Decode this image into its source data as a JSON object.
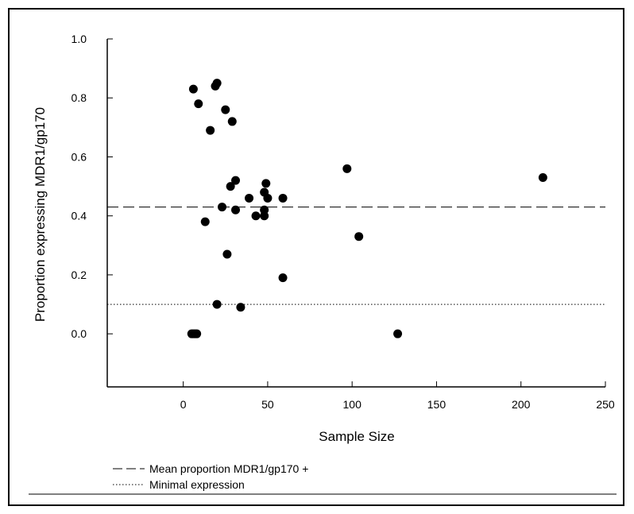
{
  "chart_data": {
    "type": "scatter",
    "xlabel": "Sample Size",
    "ylabel": "Proportion expressing MDR1/gp170",
    "xlim": [
      -45,
      250
    ],
    "ylim": [
      -0.18,
      1.0
    ],
    "xticks": [
      0,
      50,
      100,
      150,
      200,
      250
    ],
    "yticks": [
      0.0,
      0.2,
      0.4,
      0.6,
      0.8,
      1.0
    ],
    "ytick_labels": [
      "0.0",
      "0.2",
      "0.4",
      "0.6",
      "0.8",
      "1.0"
    ],
    "grid": false,
    "legend_position": "bottom-left",
    "points": [
      {
        "x": 6,
        "y": 0.83
      },
      {
        "x": 9,
        "y": 0.78
      },
      {
        "x": 19,
        "y": 0.84
      },
      {
        "x": 20,
        "y": 0.85
      },
      {
        "x": 25,
        "y": 0.76
      },
      {
        "x": 29,
        "y": 0.72
      },
      {
        "x": 16,
        "y": 0.69
      },
      {
        "x": 31,
        "y": 0.52
      },
      {
        "x": 28,
        "y": 0.5
      },
      {
        "x": 49,
        "y": 0.51
      },
      {
        "x": 48,
        "y": 0.48
      },
      {
        "x": 39,
        "y": 0.46
      },
      {
        "x": 50,
        "y": 0.46
      },
      {
        "x": 59,
        "y": 0.46
      },
      {
        "x": 23,
        "y": 0.43
      },
      {
        "x": 31,
        "y": 0.42
      },
      {
        "x": 48,
        "y": 0.42
      },
      {
        "x": 43,
        "y": 0.4
      },
      {
        "x": 48,
        "y": 0.4
      },
      {
        "x": 13,
        "y": 0.38
      },
      {
        "x": 26,
        "y": 0.27
      },
      {
        "x": 59,
        "y": 0.19
      },
      {
        "x": 20,
        "y": 0.1
      },
      {
        "x": 34,
        "y": 0.09
      },
      {
        "x": 5,
        "y": 0.0
      },
      {
        "x": 6,
        "y": 0.0
      },
      {
        "x": 7,
        "y": 0.0
      },
      {
        "x": 8,
        "y": 0.0
      },
      {
        "x": 97,
        "y": 0.56
      },
      {
        "x": 104,
        "y": 0.33
      },
      {
        "x": 127,
        "y": 0.0
      },
      {
        "x": 213,
        "y": 0.53
      }
    ],
    "reference_lines": [
      {
        "name": "Mean proportion MDR1/gp170 +",
        "y": 0.43,
        "style": "dashed"
      },
      {
        "name": "Minimal expression",
        "y": 0.1,
        "style": "dotted"
      }
    ]
  },
  "colors": {
    "points": "#000000",
    "axes": "#000000",
    "background": "#ffffff"
  }
}
